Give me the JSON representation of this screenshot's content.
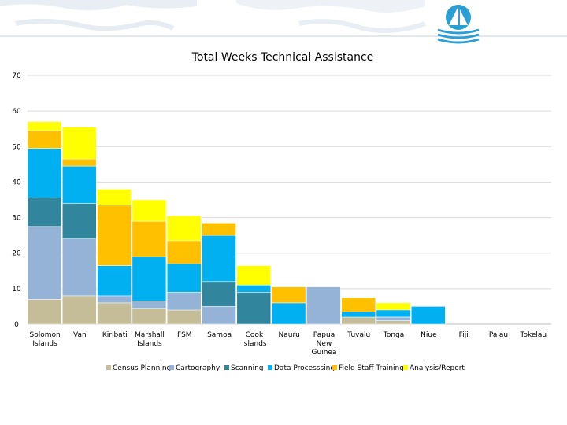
{
  "chart_data": {
    "type": "bar",
    "stacked": true,
    "title": "Total Weeks Technical Assistance",
    "xlabel": "",
    "ylabel": "",
    "ylim": [
      0,
      70
    ],
    "yticks": [
      0,
      10,
      20,
      30,
      40,
      50,
      60,
      70
    ],
    "grid": true,
    "legend_position": "bottom",
    "categories": [
      [
        "Solomon",
        "Islands"
      ],
      [
        "Van"
      ],
      [
        "Kiribati"
      ],
      [
        "Marshall",
        "Islands"
      ],
      [
        "FSM"
      ],
      [
        "Samoa"
      ],
      [
        "Cook",
        "Islands"
      ],
      [
        "Nauru"
      ],
      [
        "Papua",
        "New",
        "Guinea"
      ],
      [
        "Tuvalu"
      ],
      [
        "Tonga"
      ],
      [
        "Niue"
      ],
      [
        "Fiji"
      ],
      [
        "Palau"
      ],
      [
        "Tokelau"
      ]
    ],
    "series": [
      {
        "name": "Census Planning",
        "color": "#c4bd97",
        "values": [
          7,
          8,
          6,
          4.5,
          4,
          0,
          0,
          0,
          0,
          2,
          1,
          0,
          0,
          0,
          0
        ]
      },
      {
        "name": "Cartography",
        "color": "#95b3d7",
        "values": [
          20.5,
          16,
          2,
          2,
          5,
          5,
          0,
          0,
          10.5,
          0,
          1,
          0,
          0,
          0,
          0
        ]
      },
      {
        "name": "Scanning",
        "color": "#31859c",
        "values": [
          8,
          10,
          0,
          0,
          0,
          7,
          9,
          0,
          0,
          0,
          0,
          0,
          0,
          0,
          0
        ]
      },
      {
        "name": "Data Processsing",
        "color": "#00b0f0",
        "values": [
          14,
          10.5,
          8.5,
          12.5,
          8,
          13,
          2,
          6,
          0,
          1.5,
          2,
          5,
          0,
          0,
          0
        ]
      },
      {
        "name": "Field Staff Training",
        "color": "#ffc000",
        "values": [
          5,
          2,
          17,
          10,
          6.5,
          3.5,
          0,
          4.5,
          0,
          4,
          0,
          0,
          0,
          0,
          0
        ]
      },
      {
        "name": "Analysis/Report",
        "color": "#ffff00",
        "values": [
          2.5,
          9,
          4.5,
          6,
          7,
          0,
          5.5,
          0,
          0,
          0,
          2,
          0,
          0,
          0,
          0
        ]
      }
    ]
  }
}
